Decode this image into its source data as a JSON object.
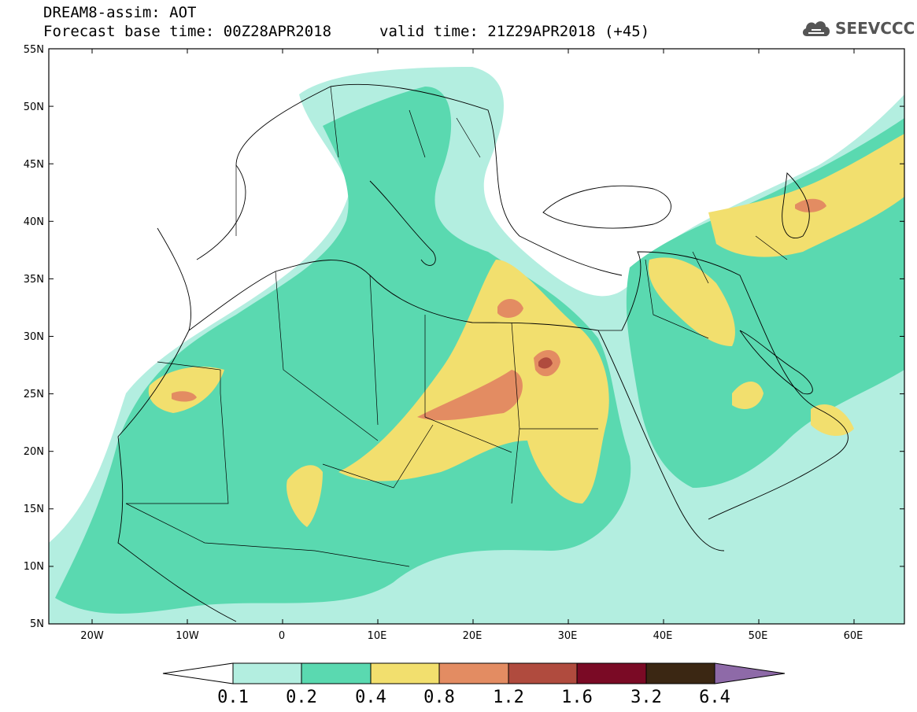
{
  "title": {
    "line1": "DREAM8-assim: AOT",
    "line2": "Forecast base time: 00Z28APR2018",
    "line3": "valid time: 21Z29APR2018 (+45)"
  },
  "logo": {
    "text": "SEEVCCC",
    "icon": "cloud-icon"
  },
  "map": {
    "lon_range": [
      -25,
      65
    ],
    "lat_range": [
      5,
      55
    ],
    "lat_ticks": [
      "5N",
      "10N",
      "15N",
      "20N",
      "25N",
      "30N",
      "35N",
      "40N",
      "45N",
      "50N",
      "55N"
    ],
    "lon_ticks": [
      "20W",
      "10W",
      "0",
      "10E",
      "20E",
      "30E",
      "40E",
      "50E",
      "60E"
    ]
  },
  "colorbar": {
    "levels": [
      "0.1",
      "0.2",
      "0.4",
      "0.8",
      "1.2",
      "1.6",
      "3.2",
      "6.4"
    ],
    "colors": [
      "#ffffff",
      "#b3eee0",
      "#5ad9b0",
      "#f2df6e",
      "#e38c62",
      "#b04b3e",
      "#7a0a25",
      "#3b2713",
      "#8e6aa8"
    ]
  }
}
